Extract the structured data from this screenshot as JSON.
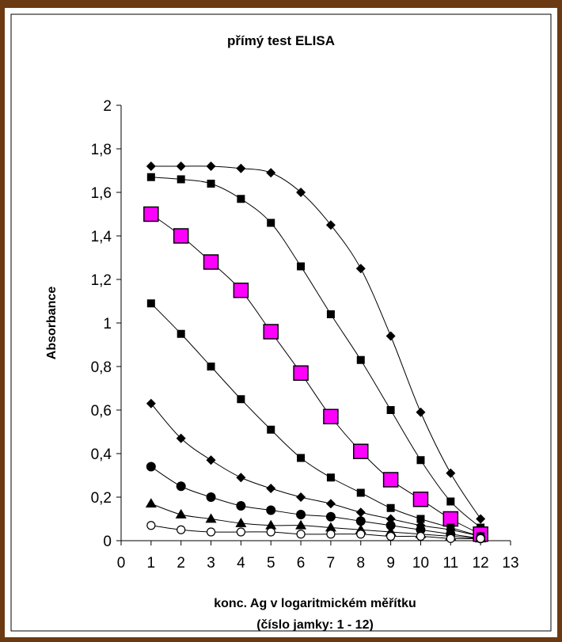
{
  "colors": {
    "frame_border": "#6b3a12",
    "frame_accent": "#c8892e",
    "line": "#000000",
    "marker": "#000000",
    "highlight_marker": "#ff00ff",
    "background": "#ffffff"
  },
  "chart_data": {
    "type": "line",
    "title": "přímý test ELISA",
    "xlabel": "konc. Ag v logaritmickém měřítku",
    "xlabel2": "(číslo jamky: 1 - 12)",
    "ylabel": "Absorbance",
    "xlim": [
      0,
      13
    ],
    "ylim": [
      0,
      2
    ],
    "x_ticks": [
      "0",
      "1",
      "2",
      "3",
      "4",
      "5",
      "6",
      "7",
      "8",
      "9",
      "10",
      "11",
      "12",
      "13"
    ],
    "y_ticks": [
      "0",
      "0,2",
      "0,4",
      "0,6",
      "0,8",
      "1",
      "1,2",
      "1,4",
      "1,6",
      "1,8",
      "2"
    ],
    "y_tick_values": [
      0,
      0.2,
      0.4,
      0.6,
      0.8,
      1.0,
      1.2,
      1.4,
      1.6,
      1.8,
      2.0
    ],
    "grid": false,
    "x": [
      1,
      2,
      3,
      4,
      5,
      6,
      7,
      8,
      9,
      10,
      11,
      12
    ],
    "series": [
      {
        "marker": "diamond",
        "color": "#000000",
        "values": [
          1.72,
          1.72,
          1.72,
          1.71,
          1.69,
          1.6,
          1.45,
          1.25,
          0.94,
          0.59,
          0.31,
          0.1
        ]
      },
      {
        "marker": "square",
        "color": "#000000",
        "values": [
          1.67,
          1.66,
          1.64,
          1.57,
          1.46,
          1.26,
          1.04,
          0.83,
          0.6,
          0.37,
          0.18,
          0.06
        ]
      },
      {
        "marker": "square_big",
        "color": "#ff00ff",
        "values": [
          1.5,
          1.4,
          1.28,
          1.15,
          0.96,
          0.77,
          0.57,
          0.41,
          0.28,
          0.19,
          0.1,
          0.03
        ]
      },
      {
        "marker": "square",
        "color": "#000000",
        "values": [
          1.09,
          0.95,
          0.8,
          0.65,
          0.51,
          0.38,
          0.29,
          0.22,
          0.15,
          0.1,
          0.06,
          0.02
        ]
      },
      {
        "marker": "diamond",
        "color": "#000000",
        "values": [
          0.63,
          0.47,
          0.37,
          0.29,
          0.24,
          0.2,
          0.17,
          0.13,
          0.1,
          0.07,
          0.05,
          0.02
        ]
      },
      {
        "marker": "circle",
        "color": "#000000",
        "values": [
          0.34,
          0.25,
          0.2,
          0.16,
          0.14,
          0.12,
          0.11,
          0.09,
          0.07,
          0.05,
          0.03,
          0.01
        ]
      },
      {
        "marker": "triangle",
        "color": "#000000",
        "values": [
          0.17,
          0.12,
          0.1,
          0.08,
          0.07,
          0.07,
          0.06,
          0.05,
          0.04,
          0.03,
          0.02,
          0.01
        ]
      },
      {
        "marker": "open_circle",
        "color": "#000000",
        "values": [
          0.07,
          0.05,
          0.04,
          0.04,
          0.04,
          0.03,
          0.03,
          0.03,
          0.02,
          0.02,
          0.01,
          0.01
        ]
      }
    ]
  }
}
